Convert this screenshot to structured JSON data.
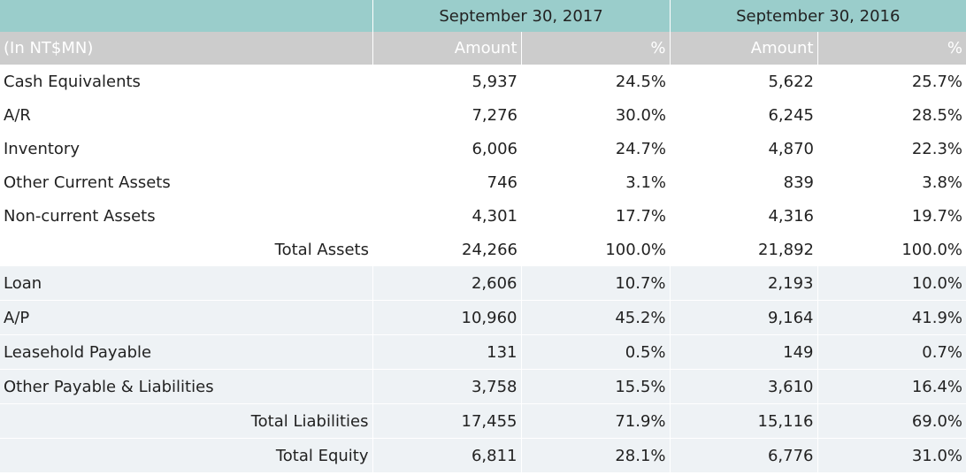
{
  "headers": {
    "period_2017": "September 30, 2017",
    "period_2016": "September 30, 2016",
    "unit_label": "(In NT$MN)",
    "amount_label": "Amount",
    "percent_label": "%"
  },
  "rows": [
    {
      "label": "Cash Equivalents",
      "a2017": "5,937",
      "p2017": "24.5%",
      "a2016": "5,622",
      "p2016": "25.7%"
    },
    {
      "label": "A/R",
      "a2017": "7,276",
      "p2017": "30.0%",
      "a2016": "6,245",
      "p2016": "28.5%"
    },
    {
      "label": "Inventory",
      "a2017": "6,006",
      "p2017": "24.7%",
      "a2016": "4,870",
      "p2016": "22.3%"
    },
    {
      "label": "Other Current Assets",
      "a2017": "746",
      "p2017": "3.1%",
      "a2016": "839",
      "p2016": "3.8%"
    },
    {
      "label": "Non-current Assets",
      "a2017": "4,301",
      "p2017": "17.7%",
      "a2016": "4,316",
      "p2016": "19.7%"
    },
    {
      "label": "Total Assets",
      "a2017": "24,266",
      "p2017": "100.0%",
      "a2016": "21,892",
      "p2016": "100.0%"
    },
    {
      "label": "Loan",
      "a2017": "2,606",
      "p2017": "10.7%",
      "a2016": "2,193",
      "p2016": "10.0%"
    },
    {
      "label": "A/P",
      "a2017": "10,960",
      "p2017": "45.2%",
      "a2016": "9,164",
      "p2016": "41.9%"
    },
    {
      "label": "Leasehold Payable",
      "a2017": "131",
      "p2017": "0.5%",
      "a2016": "149",
      "p2016": "0.7%"
    },
    {
      "label": "Other Payable & Liabilities",
      "a2017": "3,758",
      "p2017": "15.5%",
      "a2016": "3,610",
      "p2016": "16.4%"
    },
    {
      "label": "Total Liabilities",
      "a2017": "17,455",
      "p2017": "71.9%",
      "a2016": "15,116",
      "p2016": "69.0%"
    },
    {
      "label": "Total Equity",
      "a2017": "6,811",
      "p2017": "28.1%",
      "a2016": "6,776",
      "p2016": "31.0%"
    }
  ],
  "colors": {
    "header_teal": "#9acdcb",
    "header_gray": "#cccccc",
    "alt_row": "#eef2f5"
  }
}
